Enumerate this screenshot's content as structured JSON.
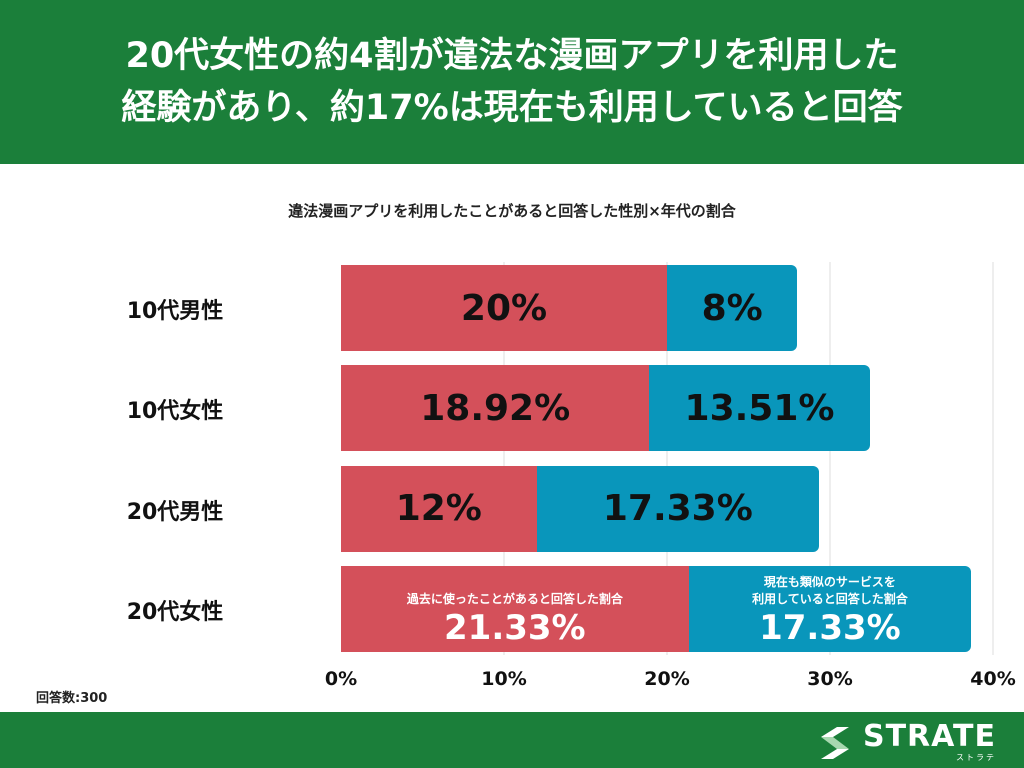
{
  "header": {
    "title_line1": "20代女性の約4割が違法な漫画アプリを利用した",
    "title_line2": "経験があり、約17%は現在も利用していると回答"
  },
  "colors": {
    "header_bg": "#1b7f3a",
    "past": "#d4505a",
    "current": "#0996bb"
  },
  "chart_data": {
    "type": "bar",
    "orientation": "horizontal",
    "stacked": true,
    "title": "違法漫画アプリを利用したことがあると回答した性別×年代の割合",
    "categories": [
      "10代男性",
      "10代女性",
      "20代男性",
      "20代女性"
    ],
    "series": [
      {
        "name": "過去に使ったことがあると回答した割合",
        "values": [
          20,
          18.92,
          12,
          21.33
        ],
        "labels": [
          "20%",
          "18.92%",
          "12%",
          "21.33%"
        ]
      },
      {
        "name": "現在も類似のサービスを利用していると回答した割合",
        "values": [
          8,
          13.51,
          17.33,
          17.33
        ],
        "labels": [
          "8%",
          "13.51%",
          "17.33%",
          "17.33%"
        ]
      }
    ],
    "xlim": [
      0,
      40
    ],
    "ticks": [
      "0%",
      "10%",
      "20%",
      "30%",
      "40%"
    ],
    "grid": true
  },
  "series_caption_current_line1": "現在も類似のサービスを",
  "series_caption_current_line2": "利用していると回答した割合",
  "note": "回答数:300",
  "footer": {
    "logo_text": "STRATE",
    "logo_kana": "ストラテ"
  }
}
